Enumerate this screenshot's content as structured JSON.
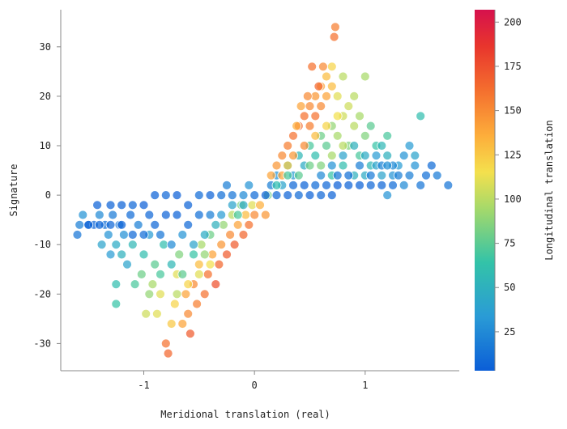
{
  "chart_data": {
    "type": "scatter",
    "title": "",
    "xlabel": "Meridional translation (real)",
    "ylabel": "Signature",
    "xlim": [
      -1.75,
      1.85
    ],
    "ylim": [
      -35.5,
      37.5
    ],
    "xticks": [
      -1,
      0,
      1
    ],
    "yticks": [
      -30,
      -20,
      -10,
      0,
      10,
      20,
      30
    ],
    "colorbar": {
      "label": "Longitudinal translation",
      "range": [
        3,
        207
      ],
      "ticks": [
        25,
        50,
        75,
        100,
        125,
        150,
        175,
        200
      ],
      "colormap": "Spectral (blue to red)"
    },
    "grid": false,
    "series": [
      {
        "points": [
          [
            -1.6,
            -8,
            15
          ],
          [
            -1.58,
            -6,
            20
          ],
          [
            -1.55,
            -4,
            30
          ],
          [
            -1.5,
            -6,
            10
          ],
          [
            -1.45,
            -6,
            8
          ],
          [
            -1.42,
            -2,
            5
          ],
          [
            -1.4,
            -4,
            25
          ],
          [
            -1.38,
            -10,
            40
          ],
          [
            -1.35,
            -6,
            12
          ],
          [
            -1.32,
            -8,
            30
          ],
          [
            -1.3,
            -12,
            35
          ],
          [
            -1.28,
            -4,
            18
          ],
          [
            -1.25,
            -10,
            45
          ],
          [
            -1.22,
            -6,
            15
          ],
          [
            -1.2,
            -12,
            50
          ],
          [
            -1.18,
            -8,
            28
          ],
          [
            -1.15,
            -14,
            40
          ],
          [
            -1.12,
            -4,
            10
          ],
          [
            -1.1,
            -10,
            55
          ],
          [
            -1.08,
            -18,
            70
          ],
          [
            -1.25,
            -18,
            60
          ],
          [
            -1.25,
            -22,
            65
          ],
          [
            -1.05,
            -6,
            20
          ],
          [
            -1.02,
            -16,
            80
          ],
          [
            -1.0,
            -12,
            60
          ],
          [
            -0.98,
            -24,
            105
          ],
          [
            -0.95,
            -8,
            35
          ],
          [
            -0.92,
            -18,
            95
          ],
          [
            -0.9,
            -14,
            75
          ],
          [
            -0.88,
            -24,
            110
          ],
          [
            -0.85,
            -20,
            110
          ],
          [
            -0.82,
            -10,
            60
          ],
          [
            -0.8,
            -30,
            160
          ],
          [
            -0.78,
            -32,
            165
          ],
          [
            -0.75,
            -26,
            125
          ],
          [
            -0.72,
            -22,
            120
          ],
          [
            -0.7,
            -16,
            110
          ],
          [
            -0.68,
            -12,
            85
          ],
          [
            -0.65,
            -26,
            140
          ],
          [
            -0.62,
            -20,
            140
          ],
          [
            -0.6,
            -24,
            150
          ],
          [
            -0.58,
            -28,
            170
          ],
          [
            -0.55,
            -18,
            150
          ],
          [
            -0.52,
            -22,
            155
          ],
          [
            -0.5,
            -14,
            130
          ],
          [
            -0.48,
            -10,
            95
          ],
          [
            -0.45,
            -20,
            160
          ],
          [
            -0.42,
            -16,
            160
          ],
          [
            -0.4,
            -8,
            80
          ],
          [
            -0.38,
            -12,
            140
          ],
          [
            -0.35,
            -18,
            175
          ],
          [
            -0.32,
            -14,
            165
          ],
          [
            -0.3,
            -10,
            145
          ],
          [
            -0.28,
            -6,
            90
          ],
          [
            -0.25,
            -12,
            170
          ],
          [
            -0.22,
            -8,
            150
          ],
          [
            -0.2,
            -4,
            100
          ],
          [
            -0.18,
            -10,
            170
          ],
          [
            -0.15,
            -6,
            140
          ],
          [
            -0.12,
            -2,
            85
          ],
          [
            -0.1,
            -8,
            165
          ],
          [
            -0.08,
            -4,
            130
          ],
          [
            -0.05,
            -6,
            160
          ],
          [
            -0.02,
            -2,
            110
          ],
          [
            0.0,
            -4,
            150
          ],
          [
            0.05,
            -2,
            135
          ],
          [
            0.1,
            -4,
            145
          ],
          [
            0.12,
            0,
            80
          ],
          [
            -1.3,
            -2,
            6
          ],
          [
            -1.2,
            -2,
            5
          ],
          [
            -1.1,
            -2,
            8
          ],
          [
            -1.0,
            -2,
            4
          ],
          [
            -0.9,
            0,
            5
          ],
          [
            -0.8,
            0,
            8
          ],
          [
            -0.7,
            0,
            4
          ],
          [
            -0.6,
            -2,
            6
          ],
          [
            -0.5,
            0,
            10
          ],
          [
            -0.4,
            0,
            6
          ],
          [
            -0.3,
            0,
            12
          ],
          [
            -0.25,
            2,
            20
          ],
          [
            -0.2,
            0,
            15
          ],
          [
            -0.1,
            0,
            25
          ],
          [
            -0.05,
            2,
            30
          ],
          [
            0.0,
            0,
            10
          ],
          [
            0.1,
            0,
            5
          ],
          [
            0.2,
            0,
            8
          ],
          [
            0.3,
            0,
            6
          ],
          [
            0.4,
            0,
            10
          ],
          [
            0.5,
            0,
            5
          ],
          [
            0.6,
            0,
            8
          ],
          [
            0.7,
            0,
            6
          ],
          [
            0.75,
            2,
            4
          ],
          [
            0.85,
            2,
            6
          ],
          [
            0.95,
            2,
            5
          ],
          [
            1.05,
            2,
            8
          ],
          [
            1.15,
            2,
            7
          ],
          [
            1.2,
            0,
            30
          ],
          [
            1.25,
            2,
            10
          ],
          [
            -1.5,
            -6,
            6
          ],
          [
            -1.4,
            -6,
            7
          ],
          [
            -1.3,
            -6,
            8
          ],
          [
            -1.2,
            -6,
            6
          ],
          [
            -1.1,
            -8,
            9
          ],
          [
            -1.0,
            -8,
            10
          ],
          [
            -0.9,
            -6,
            8
          ],
          [
            -0.8,
            -4,
            6
          ],
          [
            -0.7,
            -4,
            5
          ],
          [
            -0.6,
            -6,
            9
          ],
          [
            -0.5,
            -4,
            12
          ],
          [
            -0.4,
            -4,
            20
          ],
          [
            -0.3,
            -4,
            35
          ],
          [
            -0.2,
            -2,
            40
          ],
          [
            -0.1,
            -2,
            45
          ],
          [
            -0.95,
            -4,
            8
          ],
          [
            -0.85,
            -8,
            15
          ],
          [
            -0.75,
            -10,
            25
          ],
          [
            -0.65,
            -8,
            30
          ],
          [
            -0.55,
            -10,
            40
          ],
          [
            -0.45,
            -8,
            45
          ],
          [
            -0.35,
            -6,
            50
          ],
          [
            -0.15,
            -4,
            70
          ],
          [
            -0.75,
            -14,
            55
          ],
          [
            -0.65,
            -16,
            75
          ],
          [
            -0.55,
            -12,
            65
          ],
          [
            -0.45,
            -12,
            90
          ],
          [
            -0.85,
            -16,
            70
          ],
          [
            -0.95,
            -20,
            90
          ],
          [
            -0.7,
            -20,
            100
          ],
          [
            -0.6,
            -18,
            120
          ],
          [
            -0.5,
            -16,
            110
          ],
          [
            -0.4,
            -14,
            115
          ],
          [
            0.15,
            2,
            20
          ],
          [
            0.2,
            4,
            30
          ],
          [
            0.25,
            2,
            40
          ],
          [
            0.3,
            6,
            50
          ],
          [
            0.35,
            4,
            35
          ],
          [
            0.4,
            8,
            55
          ],
          [
            0.45,
            6,
            45
          ],
          [
            0.5,
            10,
            70
          ],
          [
            0.55,
            8,
            60
          ],
          [
            0.6,
            12,
            80
          ],
          [
            0.65,
            10,
            75
          ],
          [
            0.7,
            14,
            90
          ],
          [
            0.75,
            12,
            95
          ],
          [
            0.8,
            16,
            105
          ],
          [
            0.85,
            10,
            85
          ],
          [
            0.9,
            14,
            100
          ],
          [
            0.95,
            8,
            70
          ],
          [
            1.0,
            12,
            85
          ],
          [
            1.05,
            6,
            55
          ],
          [
            1.1,
            10,
            65
          ],
          [
            1.15,
            4,
            40
          ],
          [
            1.2,
            8,
            50
          ],
          [
            1.25,
            4,
            30
          ],
          [
            1.3,
            6,
            35
          ],
          [
            1.35,
            2,
            25
          ],
          [
            1.4,
            4,
            20
          ],
          [
            1.45,
            6,
            30
          ],
          [
            1.5,
            2,
            15
          ],
          [
            1.55,
            4,
            12
          ],
          [
            1.6,
            6,
            10
          ],
          [
            1.65,
            4,
            18
          ],
          [
            1.75,
            2,
            14
          ],
          [
            1.45,
            8,
            40
          ],
          [
            1.5,
            16,
            60
          ],
          [
            1.2,
            12,
            70
          ],
          [
            1.15,
            10,
            55
          ],
          [
            1.05,
            14,
            75
          ],
          [
            1.0,
            24,
            95
          ],
          [
            0.15,
            4,
            140
          ],
          [
            0.2,
            6,
            145
          ],
          [
            0.25,
            8,
            150
          ],
          [
            0.3,
            10,
            155
          ],
          [
            0.35,
            12,
            160
          ],
          [
            0.4,
            14,
            165
          ],
          [
            0.45,
            16,
            160
          ],
          [
            0.5,
            18,
            150
          ],
          [
            0.55,
            20,
            145
          ],
          [
            0.6,
            22,
            140
          ],
          [
            0.65,
            24,
            130
          ],
          [
            0.7,
            26,
            120
          ],
          [
            0.75,
            20,
            110
          ],
          [
            0.8,
            24,
            100
          ],
          [
            0.45,
            10,
            150
          ],
          [
            0.5,
            14,
            155
          ],
          [
            0.55,
            16,
            160
          ],
          [
            0.35,
            8,
            145
          ],
          [
            0.25,
            4,
            140
          ],
          [
            0.6,
            18,
            150
          ],
          [
            0.65,
            20,
            140
          ],
          [
            0.7,
            22,
            130
          ],
          [
            0.72,
            32,
            160
          ],
          [
            0.73,
            34,
            155
          ],
          [
            0.62,
            26,
            150
          ],
          [
            0.52,
            26,
            160
          ],
          [
            0.58,
            22,
            165
          ],
          [
            0.48,
            20,
            150
          ],
          [
            0.42,
            18,
            140
          ],
          [
            0.38,
            14,
            135
          ],
          [
            0.3,
            6,
            125
          ],
          [
            0.55,
            12,
            130
          ],
          [
            0.65,
            14,
            120
          ],
          [
            0.75,
            16,
            115
          ],
          [
            0.85,
            18,
            105
          ],
          [
            0.95,
            16,
            95
          ],
          [
            0.9,
            20,
            100
          ],
          [
            0.8,
            10,
            100
          ],
          [
            0.7,
            8,
            95
          ],
          [
            0.2,
            2,
            60
          ],
          [
            0.3,
            4,
            70
          ],
          [
            0.4,
            4,
            75
          ],
          [
            0.5,
            6,
            80
          ],
          [
            0.6,
            6,
            85
          ],
          [
            0.7,
            4,
            65
          ],
          [
            0.8,
            6,
            60
          ],
          [
            0.9,
            4,
            50
          ],
          [
            1.0,
            4,
            45
          ],
          [
            1.1,
            6,
            40
          ],
          [
            0.35,
            2,
            8
          ],
          [
            0.45,
            2,
            6
          ],
          [
            0.55,
            2,
            10
          ],
          [
            0.65,
            2,
            8
          ],
          [
            0.75,
            4,
            15
          ],
          [
            0.85,
            4,
            12
          ],
          [
            0.95,
            6,
            20
          ],
          [
            1.05,
            4,
            18
          ],
          [
            1.15,
            6,
            22
          ],
          [
            1.25,
            6,
            25
          ],
          [
            1.35,
            8,
            30
          ],
          [
            1.4,
            10,
            35
          ],
          [
            0.6,
            4,
            25
          ],
          [
            0.7,
            6,
            30
          ],
          [
            0.8,
            8,
            40
          ],
          [
            0.9,
            10,
            50
          ],
          [
            1.0,
            8,
            45
          ],
          [
            1.1,
            8,
            35
          ],
          [
            1.2,
            6,
            28
          ],
          [
            1.3,
            4,
            20
          ]
        ]
      }
    ]
  }
}
